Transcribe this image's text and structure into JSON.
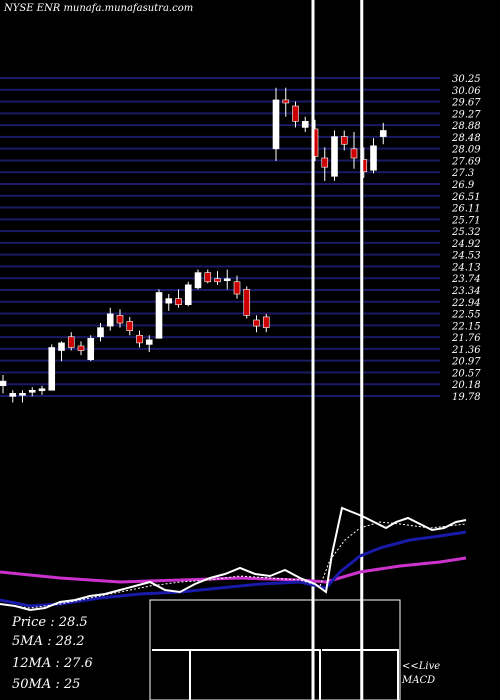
{
  "header": {
    "title": "NYSE ENR munafa.munafasutra.com"
  },
  "info": {
    "price": "Price : 28.5",
    "ma5": "5MA : 28.2",
    "ma12": "12MA : 27.6",
    "ma50": "50MA : 25"
  },
  "macd": {
    "line1": "<<Live",
    "line2": "MACD"
  },
  "colors": {
    "background": "#000000",
    "grid": "#1a1a66",
    "up_candle": "#ffffff",
    "down_candle": "#cc0000",
    "ma_short": "#ffffff",
    "ma_mid": "#1a1aaa",
    "ma_long": "#cc33cc"
  },
  "chart_data": {
    "type": "candlestick",
    "title": "NYSE ENR munafa.munafasutra.com",
    "y_ticks": [
      "30.25",
      "30.06",
      "29.67",
      "29.27",
      "28.88",
      "28.48",
      "28.09",
      "27.69",
      "27.3",
      "26.9",
      "26.51",
      "26.11",
      "25.71",
      "25.32",
      "24.92",
      "24.53",
      "24.13",
      "23.74",
      "23.34",
      "22.94",
      "22.55",
      "22.15",
      "21.76",
      "21.36",
      "20.97",
      "20.57",
      "20.18",
      "19.78"
    ],
    "ylim": [
      19.78,
      30.25
    ],
    "candles": [
      {
        "o": 20.15,
        "h": 20.5,
        "l": 19.9,
        "c": 20.3,
        "dir": "up"
      },
      {
        "o": 19.8,
        "h": 20.0,
        "l": 19.6,
        "c": 19.9,
        "dir": "up"
      },
      {
        "o": 19.85,
        "h": 20.0,
        "l": 19.6,
        "c": 19.9,
        "dir": "up"
      },
      {
        "o": 19.95,
        "h": 20.1,
        "l": 19.8,
        "c": 20.0,
        "dir": "up"
      },
      {
        "o": 20.0,
        "h": 20.15,
        "l": 19.85,
        "c": 20.05,
        "dir": "up"
      },
      {
        "o": 20.0,
        "h": 21.5,
        "l": 20.0,
        "c": 21.4,
        "dir": "up"
      },
      {
        "o": 21.3,
        "h": 21.6,
        "l": 20.95,
        "c": 21.55,
        "dir": "up"
      },
      {
        "o": 21.75,
        "h": 21.9,
        "l": 21.3,
        "c": 21.4,
        "dir": "down"
      },
      {
        "o": 21.45,
        "h": 21.6,
        "l": 21.15,
        "c": 21.3,
        "dir": "down"
      },
      {
        "o": 21.0,
        "h": 21.8,
        "l": 20.95,
        "c": 21.7,
        "dir": "up"
      },
      {
        "o": 21.75,
        "h": 22.2,
        "l": 21.6,
        "c": 22.05,
        "dir": "up"
      },
      {
        "o": 22.1,
        "h": 22.7,
        "l": 21.95,
        "c": 22.5,
        "dir": "up"
      },
      {
        "o": 22.45,
        "h": 22.65,
        "l": 22.05,
        "c": 22.2,
        "dir": "down"
      },
      {
        "o": 22.25,
        "h": 22.4,
        "l": 21.8,
        "c": 21.95,
        "dir": "down"
      },
      {
        "o": 21.8,
        "h": 21.95,
        "l": 21.4,
        "c": 21.55,
        "dir": "down"
      },
      {
        "o": 21.5,
        "h": 21.8,
        "l": 21.25,
        "c": 21.65,
        "dir": "up"
      },
      {
        "o": 21.7,
        "h": 23.3,
        "l": 21.7,
        "c": 23.2,
        "dir": "up"
      },
      {
        "o": 22.85,
        "h": 23.15,
        "l": 22.6,
        "c": 23.0,
        "dir": "up"
      },
      {
        "o": 23.0,
        "h": 23.3,
        "l": 22.7,
        "c": 22.8,
        "dir": "down"
      },
      {
        "o": 22.8,
        "h": 23.55,
        "l": 22.75,
        "c": 23.45,
        "dir": "up"
      },
      {
        "o": 23.35,
        "h": 23.95,
        "l": 23.3,
        "c": 23.85,
        "dir": "up"
      },
      {
        "o": 23.85,
        "h": 23.95,
        "l": 23.5,
        "c": 23.55,
        "dir": "down"
      },
      {
        "o": 23.65,
        "h": 23.9,
        "l": 23.45,
        "c": 23.55,
        "dir": "down"
      },
      {
        "o": 23.6,
        "h": 23.95,
        "l": 23.3,
        "c": 23.65,
        "dir": "up"
      },
      {
        "o": 23.55,
        "h": 23.75,
        "l": 23.0,
        "c": 23.15,
        "dir": "down"
      },
      {
        "o": 23.3,
        "h": 23.4,
        "l": 22.35,
        "c": 22.45,
        "dir": "down"
      },
      {
        "o": 22.3,
        "h": 22.45,
        "l": 21.9,
        "c": 22.1,
        "dir": "down"
      },
      {
        "o": 22.4,
        "h": 22.5,
        "l": 21.9,
        "c": 22.05,
        "dir": "down"
      },
      {
        "o": 27.9,
        "h": 29.9,
        "l": 27.5,
        "c": 29.5,
        "dir": "up"
      },
      {
        "o": 29.5,
        "h": 29.9,
        "l": 28.95,
        "c": 29.4,
        "dir": "down"
      },
      {
        "o": 29.3,
        "h": 29.45,
        "l": 28.6,
        "c": 28.8,
        "dir": "down"
      },
      {
        "o": 28.6,
        "h": 28.95,
        "l": 28.45,
        "c": 28.8,
        "dir": "up"
      },
      {
        "o": 28.55,
        "h": 28.85,
        "l": 27.5,
        "c": 27.65,
        "dir": "down"
      },
      {
        "o": 27.6,
        "h": 27.95,
        "l": 26.85,
        "c": 27.3,
        "dir": "down"
      },
      {
        "o": 27.0,
        "h": 28.5,
        "l": 26.85,
        "c": 28.3,
        "dir": "up"
      },
      {
        "o": 28.3,
        "h": 28.5,
        "l": 27.85,
        "c": 28.05,
        "dir": "down"
      },
      {
        "o": 27.9,
        "h": 28.45,
        "l": 27.25,
        "c": 27.6,
        "dir": "down"
      },
      {
        "o": 27.55,
        "h": 27.95,
        "l": 26.95,
        "c": 27.15,
        "dir": "down"
      },
      {
        "o": 27.2,
        "h": 28.25,
        "l": 27.1,
        "c": 28.0,
        "dir": "up"
      },
      {
        "o": 28.3,
        "h": 28.75,
        "l": 28.05,
        "c": 28.5,
        "dir": "up"
      }
    ],
    "markers": [
      {
        "index": 32,
        "note": "vertical line"
      },
      {
        "index": 37,
        "note": "vertical line"
      }
    ]
  }
}
